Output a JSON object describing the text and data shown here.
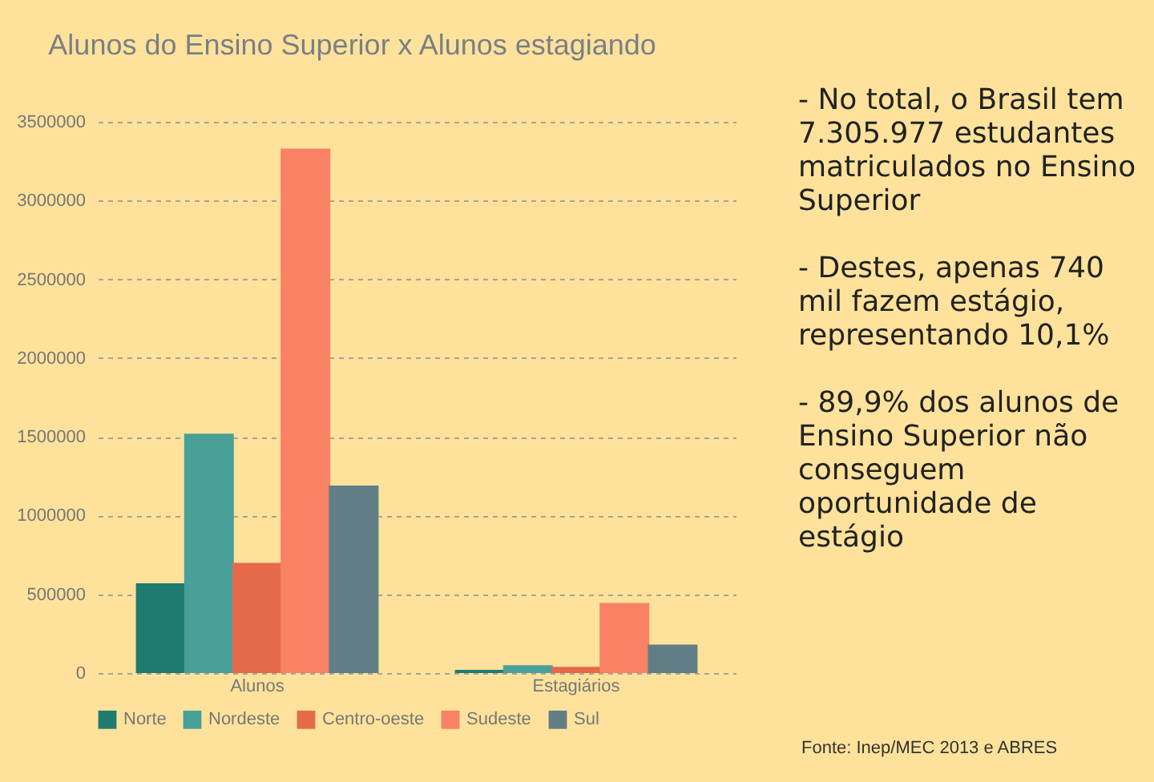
{
  "chart_data": {
    "type": "bar",
    "title": "Alunos do Ensino Superior x Alunos estagiando",
    "categories": [
      "Alunos",
      "Estagiários"
    ],
    "series": [
      {
        "name": "Norte",
        "color": "#1f7b70",
        "values": [
          570000,
          20000
        ]
      },
      {
        "name": "Nordeste",
        "color": "#49a098",
        "values": [
          1520000,
          50000
        ]
      },
      {
        "name": "Centro-oeste",
        "color": "#e5694b",
        "values": [
          700000,
          40000
        ]
      },
      {
        "name": "Sudeste",
        "color": "#f98164",
        "values": [
          3330000,
          445000
        ]
      },
      {
        "name": "Sul",
        "color": "#617e86",
        "values": [
          1190000,
          180000
        ]
      }
    ],
    "ylim": [
      0,
      3500000
    ],
    "yticks": [
      0,
      500000,
      1000000,
      1500000,
      2000000,
      2500000,
      3000000,
      3500000
    ],
    "grid": "y",
    "legend": "bottom",
    "annotations": [
      "- No total, o Brasil tem 7.305.977 estudantes matriculados no Ensino Superior",
      "- Destes, apenas 740 mil fazem estágio, representando 10,1%",
      "- 89,9% dos alunos de Ensino Superior não conseguem oportunidade de estágio",
      "Fonte: Inep/MEC 2013 e ABRES"
    ]
  }
}
